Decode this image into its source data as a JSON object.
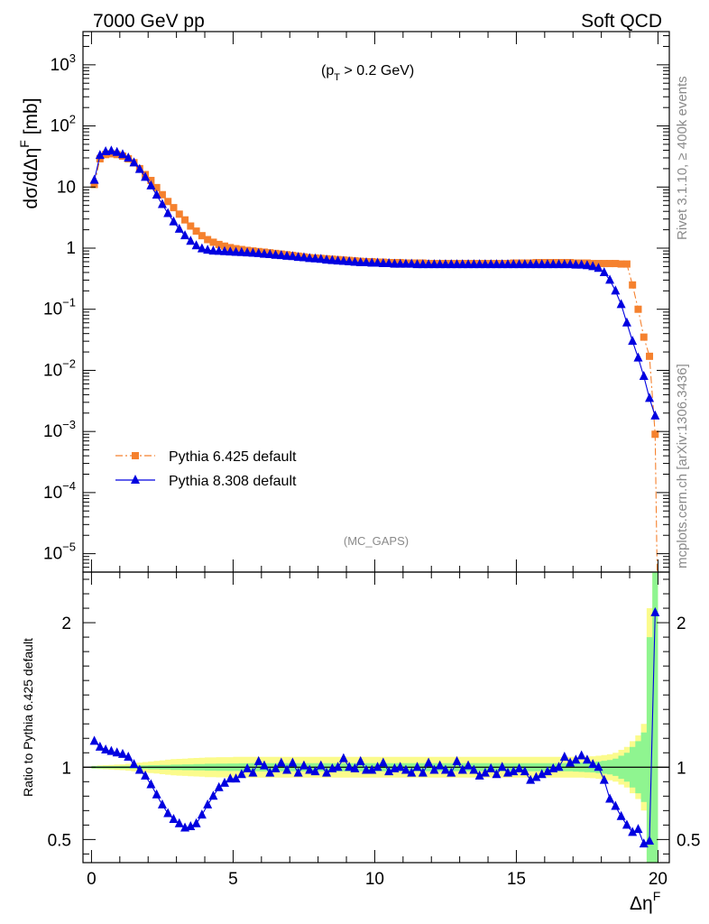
{
  "header": {
    "left_title": "7000 GeV pp",
    "right_title": "Soft QCD",
    "cut_prefix": "(p",
    "cut_sub": "T",
    "cut_suffix": " > 0.2 GeV)",
    "analysis_tag": "(MC_GAPS)",
    "side_rivet": "Rivet 3.1.10, ≥ 400k events",
    "side_mcplots": "mcplots.cern.ch [arXiv:1306.3436]"
  },
  "chart_data": [
    {
      "type": "line",
      "ylabel": "dσ/dΔη^F [mb]",
      "yscale": "log",
      "ylim": [
        5e-06,
        3500
      ],
      "xlim": [
        -0.3,
        20.4
      ],
      "y_tick_labels": [
        "10^-5",
        "10^-4",
        "10^-3",
        "10^-2",
        "10^-1",
        "1",
        "10",
        "10^2",
        "10^3"
      ],
      "legend": {
        "placement": "bottom-left"
      },
      "series": [
        {
          "name": "Pythia 6.425 default",
          "color": "#f5812e",
          "marker": "square",
          "line": "dash-dot",
          "x": [
            0.1,
            0.3,
            0.5,
            0.7,
            0.9,
            1.1,
            1.3,
            1.5,
            1.7,
            1.9,
            2.1,
            2.3,
            2.5,
            2.7,
            2.9,
            3.1,
            3.3,
            3.5,
            3.7,
            3.9,
            4.1,
            4.3,
            4.5,
            4.7,
            4.9,
            5.1,
            5.3,
            5.5,
            5.7,
            5.9,
            6.1,
            6.3,
            6.5,
            6.7,
            6.9,
            7.1,
            7.3,
            7.5,
            7.7,
            7.9,
            8.1,
            8.3,
            8.5,
            8.7,
            8.9,
            9.1,
            9.3,
            9.5,
            9.7,
            9.9,
            10.1,
            10.3,
            10.5,
            10.7,
            10.9,
            11.1,
            11.3,
            11.5,
            11.7,
            11.9,
            12.1,
            12.3,
            12.5,
            12.7,
            12.9,
            13.1,
            13.3,
            13.5,
            13.7,
            13.9,
            14.1,
            14.3,
            14.5,
            14.7,
            14.9,
            15.1,
            15.3,
            15.5,
            15.7,
            15.9,
            16.1,
            16.3,
            16.5,
            16.7,
            16.9,
            17.1,
            17.3,
            17.5,
            17.7,
            17.9,
            18.1,
            18.3,
            18.5,
            18.7,
            18.9,
            19.1,
            19.3,
            19.5,
            19.7,
            19.9
          ],
          "y": [
            11,
            29,
            34,
            35,
            34,
            32,
            29,
            25,
            20,
            16,
            12.8,
            9.8,
            7.5,
            5.8,
            4.6,
            3.6,
            2.9,
            2.3,
            1.9,
            1.6,
            1.38,
            1.25,
            1.15,
            1.08,
            1.02,
            0.98,
            0.95,
            0.92,
            0.9,
            0.88,
            0.86,
            0.84,
            0.82,
            0.8,
            0.78,
            0.76,
            0.74,
            0.72,
            0.7,
            0.69,
            0.68,
            0.67,
            0.66,
            0.65,
            0.64,
            0.63,
            0.62,
            0.61,
            0.6,
            0.6,
            0.59,
            0.59,
            0.58,
            0.58,
            0.58,
            0.57,
            0.57,
            0.57,
            0.57,
            0.56,
            0.56,
            0.56,
            0.56,
            0.56,
            0.56,
            0.56,
            0.56,
            0.56,
            0.56,
            0.56,
            0.56,
            0.56,
            0.56,
            0.56,
            0.57,
            0.57,
            0.57,
            0.57,
            0.58,
            0.58,
            0.58,
            0.58,
            0.58,
            0.58,
            0.58,
            0.57,
            0.57,
            0.57,
            0.56,
            0.56,
            0.56,
            0.56,
            0.56,
            0.55,
            0.55,
            0.25,
            0.1,
            0.035,
            0.017,
            0.0009
          ]
        },
        {
          "name": "Pythia 8.308 default",
          "color": "#0000e0",
          "marker": "triangle",
          "line": "solid",
          "x": [
            0.1,
            0.3,
            0.5,
            0.7,
            0.9,
            1.1,
            1.3,
            1.5,
            1.7,
            1.9,
            2.1,
            2.3,
            2.5,
            2.7,
            2.9,
            3.1,
            3.3,
            3.5,
            3.7,
            3.9,
            4.1,
            4.3,
            4.5,
            4.7,
            4.9,
            5.1,
            5.3,
            5.5,
            5.7,
            5.9,
            6.1,
            6.3,
            6.5,
            6.7,
            6.9,
            7.1,
            7.3,
            7.5,
            7.7,
            7.9,
            8.1,
            8.3,
            8.5,
            8.7,
            8.9,
            9.1,
            9.3,
            9.5,
            9.7,
            9.9,
            10.1,
            10.3,
            10.5,
            10.7,
            10.9,
            11.1,
            11.3,
            11.5,
            11.7,
            11.9,
            12.1,
            12.3,
            12.5,
            12.7,
            12.9,
            13.1,
            13.3,
            13.5,
            13.7,
            13.9,
            14.1,
            14.3,
            14.5,
            14.7,
            14.9,
            15.1,
            15.3,
            15.5,
            15.7,
            15.9,
            16.1,
            16.3,
            16.5,
            16.7,
            16.9,
            17.1,
            17.3,
            17.5,
            17.7,
            17.9,
            18.1,
            18.3,
            18.5,
            18.7,
            18.9,
            19.1,
            19.3,
            19.5,
            19.7,
            19.9
          ],
          "y": [
            13,
            33,
            38,
            39,
            37,
            34,
            30,
            25,
            19.5,
            14.5,
            10.5,
            7.4,
            5.2,
            3.7,
            2.7,
            2.05,
            1.6,
            1.3,
            1.1,
            0.98,
            0.93,
            0.9,
            0.89,
            0.88,
            0.87,
            0.86,
            0.85,
            0.84,
            0.83,
            0.82,
            0.8,
            0.79,
            0.77,
            0.76,
            0.74,
            0.73,
            0.71,
            0.7,
            0.68,
            0.67,
            0.66,
            0.64,
            0.63,
            0.62,
            0.61,
            0.6,
            0.59,
            0.58,
            0.58,
            0.57,
            0.57,
            0.56,
            0.56,
            0.55,
            0.55,
            0.55,
            0.55,
            0.54,
            0.54,
            0.54,
            0.54,
            0.54,
            0.54,
            0.54,
            0.54,
            0.54,
            0.54,
            0.54,
            0.54,
            0.54,
            0.54,
            0.54,
            0.54,
            0.54,
            0.54,
            0.54,
            0.54,
            0.54,
            0.54,
            0.54,
            0.54,
            0.54,
            0.54,
            0.54,
            0.54,
            0.53,
            0.53,
            0.52,
            0.5,
            0.47,
            0.4,
            0.3,
            0.2,
            0.12,
            0.06,
            0.03,
            0.016,
            0.008,
            0.0035,
            0.0018
          ]
        }
      ]
    },
    {
      "type": "line",
      "ylabel": "Ratio to Pythia 6.425 default",
      "xlabel": "Δη^F",
      "ylim": [
        0.34,
        2.35
      ],
      "xlim": [
        -0.3,
        20.4
      ],
      "y_ticks": [
        0.5,
        1,
        2
      ],
      "x_ticks": [
        0,
        5,
        10,
        15,
        20
      ],
      "reference": 1,
      "band_colors": {
        "inner": "#8ff590",
        "outer": "#fbfb8c"
      },
      "band_inner_half_width": [
        0.008,
        0.008,
        0.008,
        0.008,
        0.008,
        0.01,
        0.01,
        0.01,
        0.012,
        0.012,
        0.014,
        0.014,
        0.016,
        0.016,
        0.018,
        0.018,
        0.02,
        0.02,
        0.022,
        0.022,
        0.024,
        0.024,
        0.025,
        0.025,
        0.026,
        0.026,
        0.027,
        0.027,
        0.028,
        0.028,
        0.028,
        0.028,
        0.028,
        0.028,
        0.028,
        0.028,
        0.028,
        0.028,
        0.028,
        0.028,
        0.028,
        0.028,
        0.028,
        0.028,
        0.028,
        0.028,
        0.028,
        0.028,
        0.028,
        0.028,
        0.028,
        0.028,
        0.028,
        0.028,
        0.028,
        0.028,
        0.028,
        0.028,
        0.028,
        0.028,
        0.028,
        0.028,
        0.028,
        0.028,
        0.028,
        0.028,
        0.028,
        0.028,
        0.028,
        0.028,
        0.028,
        0.028,
        0.028,
        0.028,
        0.028,
        0.028,
        0.028,
        0.028,
        0.028,
        0.028,
        0.028,
        0.028,
        0.028,
        0.028,
        0.028,
        0.03,
        0.032,
        0.034,
        0.036,
        0.04,
        0.045,
        0.05,
        0.06,
        0.08,
        0.1,
        0.14,
        0.18,
        0.24,
        0.9,
        1.4
      ],
      "band_outer_half_width": [
        0.01,
        0.012,
        0.014,
        0.016,
        0.018,
        0.02,
        0.024,
        0.028,
        0.032,
        0.036,
        0.04,
        0.044,
        0.048,
        0.052,
        0.056,
        0.058,
        0.06,
        0.062,
        0.064,
        0.066,
        0.068,
        0.068,
        0.07,
        0.07,
        0.07,
        0.072,
        0.072,
        0.072,
        0.072,
        0.072,
        0.072,
        0.072,
        0.072,
        0.072,
        0.072,
        0.072,
        0.072,
        0.072,
        0.072,
        0.072,
        0.072,
        0.072,
        0.072,
        0.072,
        0.072,
        0.072,
        0.072,
        0.072,
        0.072,
        0.072,
        0.072,
        0.072,
        0.072,
        0.072,
        0.072,
        0.072,
        0.072,
        0.072,
        0.072,
        0.072,
        0.072,
        0.072,
        0.072,
        0.072,
        0.072,
        0.072,
        0.072,
        0.072,
        0.072,
        0.072,
        0.072,
        0.072,
        0.072,
        0.072,
        0.072,
        0.072,
        0.072,
        0.072,
        0.072,
        0.072,
        0.072,
        0.072,
        0.072,
        0.072,
        0.072,
        0.072,
        0.072,
        0.074,
        0.076,
        0.08,
        0.085,
        0.09,
        0.1,
        0.12,
        0.14,
        0.18,
        0.22,
        0.3,
        1.1,
        1.6
      ],
      "series": [
        {
          "name": "Pythia 8.308 default",
          "color": "#0000e0",
          "marker": "triangle",
          "x": [
            0.1,
            0.3,
            0.5,
            0.7,
            0.9,
            1.1,
            1.3,
            1.5,
            1.7,
            1.9,
            2.1,
            2.3,
            2.5,
            2.7,
            2.9,
            3.1,
            3.3,
            3.5,
            3.7,
            3.9,
            4.1,
            4.3,
            4.5,
            4.7,
            4.9,
            5.1,
            5.3,
            5.5,
            5.7,
            5.9,
            6.1,
            6.3,
            6.5,
            6.7,
            6.9,
            7.1,
            7.3,
            7.5,
            7.7,
            7.9,
            8.1,
            8.3,
            8.5,
            8.7,
            8.9,
            9.1,
            9.3,
            9.5,
            9.7,
            9.9,
            10.1,
            10.3,
            10.5,
            10.7,
            10.9,
            11.1,
            11.3,
            11.5,
            11.7,
            11.9,
            12.1,
            12.3,
            12.5,
            12.7,
            12.9,
            13.1,
            13.3,
            13.5,
            13.7,
            13.9,
            14.1,
            14.3,
            14.5,
            14.7,
            14.9,
            15.1,
            15.3,
            15.5,
            15.7,
            15.9,
            16.1,
            16.3,
            16.5,
            16.7,
            16.9,
            17.1,
            17.3,
            17.5,
            17.7,
            17.9,
            18.1,
            18.3,
            18.5,
            18.7,
            18.9,
            19.1,
            19.3,
            19.5,
            19.7,
            19.9
          ],
          "y": [
            1.18,
            1.14,
            1.12,
            1.11,
            1.1,
            1.09,
            1.07,
            1.02,
            0.98,
            0.94,
            0.88,
            0.81,
            0.74,
            0.68,
            0.64,
            0.61,
            0.58,
            0.59,
            0.61,
            0.67,
            0.74,
            0.8,
            0.86,
            0.89,
            0.92,
            0.92,
            0.95,
            0.99,
            0.96,
            1.04,
            1.01,
            0.96,
            0.99,
            1.03,
            0.98,
            1.03,
            0.96,
            1.01,
            0.98,
            0.97,
            1.01,
            0.96,
            0.99,
            1.0,
            1.06,
            1.0,
            0.99,
            1.04,
            0.98,
            0.98,
            1.0,
            1.03,
            0.97,
            0.99,
            1.0,
            0.98,
            0.96,
            1.0,
            0.96,
            1.03,
            0.98,
            1.01,
            0.98,
            0.96,
            1.04,
            0.98,
            1.01,
            0.98,
            0.94,
            0.96,
            0.99,
            0.95,
            1.0,
            0.96,
            0.97,
            0.99,
            0.97,
            0.91,
            0.93,
            0.95,
            0.97,
            0.99,
            1.0,
            1.07,
            1.03,
            1.05,
            1.08,
            1.05,
            1.02,
            1.0,
            0.91,
            0.78,
            0.73,
            0.66,
            0.6,
            0.55,
            0.57,
            0.47,
            0.49,
            2.07
          ]
        }
      ]
    }
  ]
}
